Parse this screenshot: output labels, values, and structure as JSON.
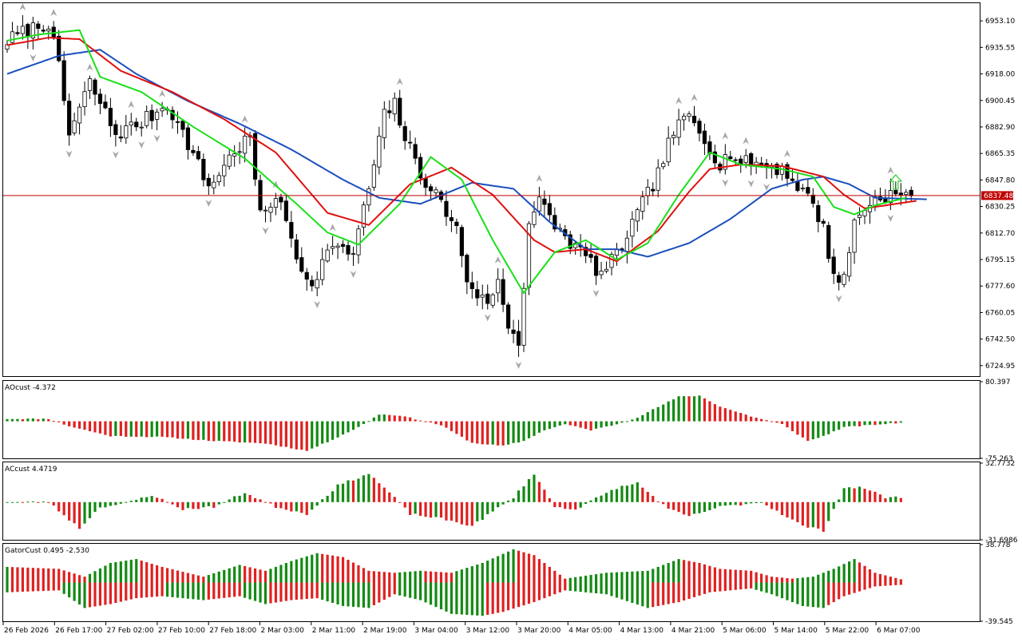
{
  "colors": {
    "background": "#ffffff",
    "frame": "#000000",
    "bull_body": "#ffffff",
    "bear_body": "#000000",
    "jaw": "#1a4fbd",
    "teeth": "#e01010",
    "lips": "#19e019",
    "bid_line": "#c00000",
    "histo_up": "#138a13",
    "histo_down": "#e02020",
    "fractal": "#a8a8a8",
    "signal_arrow": "#3ad13a"
  },
  "chart_data": [
    {
      "type": "candlestick",
      "panel": "main",
      "ylim": [
        6718.0,
        6964.8
      ],
      "y_ticks": [
        "6953.10",
        "6935.55",
        "6918.00",
        "6900.45",
        "6882.90",
        "6865.35",
        "6847.80",
        "6830.25",
        "6812.70",
        "6795.15",
        "6777.60",
        "6760.05",
        "6742.50",
        "6724.95"
      ],
      "y_tick_values": [
        6953.1,
        6935.55,
        6918.0,
        6900.45,
        6882.9,
        6865.35,
        6847.8,
        6830.25,
        6812.7,
        6795.15,
        6777.6,
        6760.05,
        6742.5,
        6724.95
      ],
      "current_price": 6837.48,
      "current_price_label": "6837.48",
      "x_labels": [
        "26 Feb 2026",
        "26 Feb 17:00",
        "27 Feb 02:00",
        "27 Feb 10:00",
        "27 Feb 18:00",
        "2 Mar 03:00",
        "2 Mar 11:00",
        "2 Mar 19:00",
        "3 Mar 04:00",
        "3 Mar 12:00",
        "3 Mar 20:00",
        "4 Mar 05:00",
        "4 Mar 13:00",
        "4 Mar 21:00",
        "5 Mar 06:00",
        "5 Mar 14:00",
        "5 Mar 22:00",
        "6 Mar 07:00"
      ],
      "anchors": [
        [
          0,
          6940
        ],
        [
          4,
          6947
        ],
        [
          8,
          6952
        ],
        [
          10,
          6922
        ],
        [
          12,
          6878
        ],
        [
          16,
          6912
        ],
        [
          19,
          6892
        ],
        [
          21,
          6878
        ],
        [
          26,
          6886
        ],
        [
          31,
          6898
        ],
        [
          35,
          6872
        ],
        [
          39,
          6843
        ],
        [
          44,
          6867
        ],
        [
          47,
          6876
        ],
        [
          49,
          6823
        ],
        [
          52,
          6838
        ],
        [
          54,
          6820
        ],
        [
          57,
          6788
        ],
        [
          60,
          6780
        ],
        [
          62,
          6805
        ],
        [
          65,
          6800
        ],
        [
          67,
          6800
        ],
        [
          70,
          6842
        ],
        [
          73,
          6890
        ],
        [
          75,
          6898
        ],
        [
          77,
          6876
        ],
        [
          80,
          6852
        ],
        [
          83,
          6838
        ],
        [
          87,
          6815
        ],
        [
          89,
          6782
        ],
        [
          92,
          6768
        ],
        [
          94,
          6770
        ],
        [
          95,
          6780
        ],
        [
          97,
          6752
        ],
        [
          99,
          6740
        ],
        [
          101,
          6820
        ],
        [
          103,
          6834
        ],
        [
          105,
          6822
        ],
        [
          108,
          6810
        ],
        [
          112,
          6797
        ],
        [
          115,
          6785
        ],
        [
          118,
          6798
        ],
        [
          122,
          6825
        ],
        [
          126,
          6852
        ],
        [
          129,
          6880
        ],
        [
          132,
          6890
        ],
        [
          134,
          6880
        ],
        [
          136,
          6870
        ],
        [
          138,
          6858
        ],
        [
          140,
          6866
        ],
        [
          142,
          6858
        ],
        [
          144,
          6860
        ],
        [
          146,
          6858
        ],
        [
          150,
          6855
        ],
        [
          152,
          6848
        ],
        [
          154,
          6840
        ],
        [
          156,
          6833
        ],
        [
          158,
          6815
        ],
        [
          160,
          6785
        ],
        [
          162,
          6782
        ],
        [
          164,
          6820
        ],
        [
          166,
          6830
        ],
        [
          168,
          6835
        ],
        [
          170,
          6838
        ],
        [
          172,
          6838
        ],
        [
          173,
          6837
        ]
      ],
      "jaw": [
        [
          0,
          6918
        ],
        [
          10,
          6930
        ],
        [
          18,
          6934
        ],
        [
          25,
          6918
        ],
        [
          35,
          6900
        ],
        [
          45,
          6885
        ],
        [
          55,
          6868
        ],
        [
          65,
          6848
        ],
        [
          72,
          6836
        ],
        [
          80,
          6832
        ],
        [
          90,
          6846
        ],
        [
          98,
          6842
        ],
        [
          105,
          6820
        ],
        [
          112,
          6802
        ],
        [
          118,
          6802
        ],
        [
          124,
          6797
        ],
        [
          132,
          6806
        ],
        [
          140,
          6822
        ],
        [
          148,
          6842
        ],
        [
          154,
          6848
        ],
        [
          158,
          6850
        ],
        [
          163,
          6845
        ],
        [
          168,
          6836
        ],
        [
          178,
          6835
        ]
      ],
      "teeth": [
        [
          0,
          6937
        ],
        [
          8,
          6942
        ],
        [
          14,
          6941
        ],
        [
          22,
          6920
        ],
        [
          32,
          6906
        ],
        [
          42,
          6888
        ],
        [
          52,
          6866
        ],
        [
          62,
          6826
        ],
        [
          70,
          6818
        ],
        [
          78,
          6845
        ],
        [
          86,
          6856
        ],
        [
          94,
          6838
        ],
        [
          102,
          6808
        ],
        [
          106,
          6800
        ],
        [
          112,
          6802
        ],
        [
          118,
          6794
        ],
        [
          126,
          6814
        ],
        [
          132,
          6840
        ],
        [
          136,
          6855
        ],
        [
          142,
          6858
        ],
        [
          150,
          6857
        ],
        [
          158,
          6850
        ],
        [
          162,
          6838
        ],
        [
          166,
          6829
        ],
        [
          176,
          6834
        ]
      ],
      "lips": [
        [
          0,
          6940
        ],
        [
          6,
          6944
        ],
        [
          14,
          6947
        ],
        [
          18,
          6916
        ],
        [
          26,
          6906
        ],
        [
          36,
          6883
        ],
        [
          46,
          6862
        ],
        [
          56,
          6832
        ],
        [
          62,
          6813
        ],
        [
          68,
          6805
        ],
        [
          76,
          6832
        ],
        [
          82,
          6863
        ],
        [
          88,
          6848
        ],
        [
          94,
          6808
        ],
        [
          100,
          6773
        ],
        [
          106,
          6800
        ],
        [
          112,
          6808
        ],
        [
          118,
          6795
        ],
        [
          124,
          6806
        ],
        [
          130,
          6838
        ],
        [
          136,
          6866
        ],
        [
          142,
          6858
        ],
        [
          150,
          6855
        ],
        [
          156,
          6850
        ],
        [
          160,
          6830
        ],
        [
          164,
          6825
        ],
        [
          168,
          6831
        ],
        [
          174,
          6836
        ]
      ]
    },
    {
      "type": "bar",
      "panel": "AOcust",
      "label": "AOcust -4.372",
      "ylim": [
        -75.263,
        80.397
      ],
      "y_ticks": [
        "80.397",
        "-75.263"
      ],
      "y_tick_values": [
        80.397,
        -75.263
      ],
      "anchors": [
        [
          0,
          5
        ],
        [
          8,
          5
        ],
        [
          12,
          -10
        ],
        [
          20,
          -30
        ],
        [
          30,
          -32
        ],
        [
          40,
          -40
        ],
        [
          50,
          -45
        ],
        [
          58,
          -60
        ],
        [
          62,
          -42
        ],
        [
          68,
          -12
        ],
        [
          72,
          14
        ],
        [
          76,
          12
        ],
        [
          80,
          2
        ],
        [
          84,
          -8
        ],
        [
          90,
          -44
        ],
        [
          96,
          -50
        ],
        [
          100,
          -40
        ],
        [
          104,
          -18
        ],
        [
          108,
          -6
        ],
        [
          113,
          -18
        ],
        [
          118,
          -6
        ],
        [
          122,
          8
        ],
        [
          130,
          50
        ],
        [
          134,
          52
        ],
        [
          138,
          30
        ],
        [
          144,
          10
        ],
        [
          150,
          -6
        ],
        [
          155,
          -40
        ],
        [
          158,
          -30
        ],
        [
          162,
          -12
        ],
        [
          174,
          -2
        ]
      ]
    },
    {
      "type": "bar",
      "panel": "ACcust",
      "label": "ACcust 4.4719",
      "ylim": [
        -31.6986,
        32.7732
      ],
      "y_ticks": [
        "32.7732",
        "-31.6986"
      ],
      "y_tick_values": [
        32.7732,
        -31.6986
      ],
      "anchors": [
        [
          0,
          0
        ],
        [
          8,
          0
        ],
        [
          14,
          -22
        ],
        [
          18,
          -4
        ],
        [
          22,
          -2
        ],
        [
          28,
          6
        ],
        [
          34,
          -6
        ],
        [
          40,
          -4
        ],
        [
          46,
          8
        ],
        [
          52,
          -4
        ],
        [
          58,
          -10
        ],
        [
          64,
          14
        ],
        [
          70,
          24
        ],
        [
          74,
          8
        ],
        [
          78,
          -10
        ],
        [
          84,
          -14
        ],
        [
          90,
          -20
        ],
        [
          94,
          -8
        ],
        [
          98,
          4
        ],
        [
          102,
          24
        ],
        [
          106,
          -4
        ],
        [
          110,
          -6
        ],
        [
          118,
          12
        ],
        [
          122,
          16
        ],
        [
          128,
          -6
        ],
        [
          132,
          -12
        ],
        [
          138,
          -4
        ],
        [
          146,
          0
        ],
        [
          154,
          -20
        ],
        [
          158,
          -24
        ],
        [
          162,
          12
        ],
        [
          166,
          12
        ],
        [
          170,
          4
        ]
      ]
    },
    {
      "type": "bar",
      "panel": "GatorCust",
      "label": "GatorCust 0.495 -2.530",
      "ylim": [
        -39.545,
        38.778
      ],
      "y_ticks": [
        "38.778",
        "-39.545"
      ],
      "y_tick_values": [
        38.778,
        -39.545
      ],
      "upper": [
        [
          0,
          16
        ],
        [
          10,
          14
        ],
        [
          15,
          6
        ],
        [
          20,
          20
        ],
        [
          25,
          24
        ],
        [
          30,
          16
        ],
        [
          38,
          6
        ],
        [
          45,
          18
        ],
        [
          50,
          12
        ],
        [
          55,
          22
        ],
        [
          60,
          30
        ],
        [
          65,
          26
        ],
        [
          70,
          12
        ],
        [
          75,
          10
        ],
        [
          80,
          12
        ],
        [
          86,
          10
        ],
        [
          92,
          20
        ],
        [
          98,
          34
        ],
        [
          102,
          28
        ],
        [
          108,
          4
        ],
        [
          116,
          10
        ],
        [
          124,
          12
        ],
        [
          130,
          24
        ],
        [
          134,
          20
        ],
        [
          138,
          14
        ],
        [
          144,
          12
        ],
        [
          148,
          6
        ],
        [
          152,
          4
        ],
        [
          156,
          6
        ],
        [
          160,
          14
        ],
        [
          164,
          24
        ],
        [
          168,
          10
        ],
        [
          174,
          2
        ],
        [
          178,
          1
        ]
      ],
      "lower": [
        [
          0,
          -10
        ],
        [
          10,
          -8
        ],
        [
          15,
          -26
        ],
        [
          20,
          -22
        ],
        [
          25,
          -16
        ],
        [
          30,
          -14
        ],
        [
          38,
          -18
        ],
        [
          45,
          -14
        ],
        [
          50,
          -22
        ],
        [
          55,
          -18
        ],
        [
          60,
          -16
        ],
        [
          65,
          -24
        ],
        [
          70,
          -26
        ],
        [
          75,
          -12
        ],
        [
          80,
          -18
        ],
        [
          86,
          -32
        ],
        [
          92,
          -34
        ],
        [
          96,
          -30
        ],
        [
          102,
          -20
        ],
        [
          108,
          -8
        ],
        [
          116,
          -12
        ],
        [
          124,
          -26
        ],
        [
          130,
          -20
        ],
        [
          136,
          -10
        ],
        [
          144,
          -6
        ],
        [
          148,
          -12
        ],
        [
          154,
          -24
        ],
        [
          158,
          -26
        ],
        [
          162,
          -14
        ],
        [
          168,
          -4
        ],
        [
          174,
          -2
        ],
        [
          178,
          -1
        ]
      ]
    }
  ]
}
